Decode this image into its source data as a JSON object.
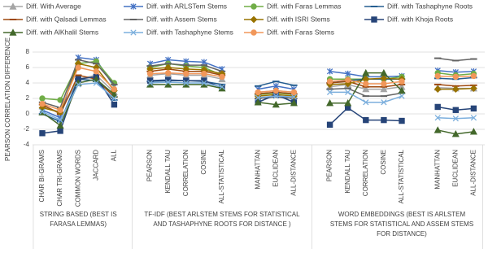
{
  "chart_data": {
    "type": "line",
    "y_label": "PEARSON CORRELATION DIFFERENCE",
    "categories": [
      "CHAR BI-GRAMS",
      "CHAR TRI-GRAMS",
      "COMMON WORDS",
      "JACCARD",
      "ALL",
      null,
      "PEARSON",
      "KENDALL TAU",
      "CORRELATION",
      "COSINE",
      "ALL-STATISTICAL",
      null,
      "MANHATTAN",
      "EUCLIDEAN",
      "ALL-DISTANCE",
      null,
      "PEARSON",
      "KENDALL TAU",
      "CORRELATION",
      "COSINE",
      "ALL-STATISTICAL",
      null,
      "MANHATTAN",
      "EUCLIDEAN",
      "ALL-DISTANCE"
    ],
    "groups": [
      {
        "lines": [
          "STRING BASED (BEST IS",
          "FARASA LEMMAS)"
        ]
      },
      {
        "lines": [
          "TF-IDF (BEST ARLSTEM STEMS FOR STATISTICAL",
          "AND TASHAPHYNE ROOTS FOR DISTANCE )"
        ]
      },
      {
        "lines": [
          "WORD EMBEDDINGS (BEST IS ARLSTEM",
          "STEMS FOR STATISTICAL AND ASSEM STEMS",
          "FOR DISTANCE)"
        ]
      }
    ],
    "ylim": [
      -4,
      8
    ],
    "yticks": [
      -4,
      -2,
      0,
      2,
      4,
      6,
      8
    ],
    "grid": true,
    "legend": "top",
    "series": [
      {
        "name": "Diff. With Average",
        "color": "#a5a5a5",
        "marker": "triangle",
        "values": [
          1.0,
          0.2,
          4.5,
          5.0,
          2.8,
          null,
          5.0,
          5.2,
          5.0,
          5.0,
          4.5,
          null,
          2.8,
          3.0,
          2.8,
          null,
          3.5,
          3.8,
          3.2,
          3.2,
          3.5,
          null,
          3.4,
          3.3,
          3.3
        ]
      },
      {
        "name": "Diff. with ARLSTem Stems",
        "color": "#4472c4",
        "marker": "star",
        "values": [
          0.5,
          -0.5,
          7.3,
          7.0,
          3.5,
          null,
          6.5,
          7.0,
          6.8,
          6.7,
          5.8,
          null,
          3.2,
          3.6,
          3.2,
          null,
          5.5,
          5.2,
          4.8,
          4.8,
          4.9,
          null,
          5.6,
          5.4,
          5.5
        ]
      },
      {
        "name": "Diff. with Faras Lemmas",
        "color": "#70ad47",
        "marker": "circle",
        "values": [
          2.0,
          1.8,
          6.5,
          6.8,
          4.0,
          null,
          6.0,
          6.5,
          6.2,
          6.0,
          5.0,
          null,
          2.5,
          2.7,
          2.5,
          null,
          4.5,
          4.5,
          4.5,
          4.5,
          4.8,
          null,
          5.3,
          5.0,
          5.2
        ]
      },
      {
        "name": "Diff. with Tashaphyne Roots",
        "color": "#255e91",
        "marker": "dash",
        "values": [
          0.0,
          -1.0,
          4.5,
          4.3,
          1.8,
          null,
          4.2,
          4.3,
          4.3,
          4.2,
          3.8,
          null,
          3.6,
          4.2,
          3.7,
          null,
          4.0,
          4.3,
          4.5,
          4.5,
          4.5,
          null,
          4.6,
          4.5,
          4.7
        ]
      },
      {
        "name": "Diff. with Qalsadi Lemmas",
        "color": "#9e480e",
        "marker": "dash",
        "values": [
          1.2,
          0.0,
          5.0,
          4.5,
          2.2,
          null,
          5.5,
          5.8,
          5.5,
          5.5,
          5.0,
          null,
          2.6,
          2.8,
          2.6,
          null,
          4.0,
          4.2,
          3.5,
          3.5,
          3.8,
          null,
          3.8,
          3.6,
          3.7
        ]
      },
      {
        "name": "Diff. with Assem Stems",
        "color": "#636363",
        "marker": "dash",
        "values": [
          1.5,
          0.8,
          7.0,
          6.5,
          3.8,
          null,
          6.2,
          6.5,
          6.3,
          6.3,
          5.5,
          null,
          2.0,
          2.2,
          2.0,
          null,
          3.2,
          3.3,
          2.3,
          2.3,
          2.7,
          null,
          7.2,
          6.9,
          7.1
        ]
      },
      {
        "name": "Diff. with ISRI Stems",
        "color": "#997300",
        "marker": "diamond",
        "values": [
          0.8,
          0.2,
          6.5,
          6.0,
          3.0,
          null,
          5.8,
          6.0,
          5.8,
          5.7,
          5.2,
          null,
          2.3,
          2.5,
          2.3,
          null,
          3.8,
          3.9,
          4.5,
          4.6,
          4.5,
          null,
          3.2,
          3.2,
          3.3
        ]
      },
      {
        "name": "Diff. with Khoja Roots",
        "color": "#264478",
        "marker": "square",
        "values": [
          -2.5,
          -2.2,
          4.5,
          4.8,
          1.2,
          null,
          4.3,
          4.4,
          4.3,
          4.3,
          3.4,
          null,
          1.5,
          2.5,
          1.5,
          null,
          -1.4,
          0.8,
          -0.8,
          -0.8,
          -0.9,
          null,
          0.9,
          0.5,
          0.7
        ]
      },
      {
        "name": "Diff. with AlKhalil Stems",
        "color": "#43682b",
        "marker": "triangle",
        "values": [
          0.2,
          -1.5,
          4.0,
          4.5,
          2.5,
          null,
          3.8,
          3.8,
          3.8,
          3.8,
          3.3,
          null,
          1.5,
          1.2,
          1.4,
          null,
          1.4,
          1.4,
          5.3,
          5.3,
          3.0,
          null,
          -2.1,
          -2.6,
          -2.3
        ]
      },
      {
        "name": "Diff. with Tashaphyne Stems",
        "color": "#7cafdd",
        "marker": "x",
        "values": [
          0.3,
          -0.8,
          3.8,
          4.0,
          2.0,
          null,
          4.0,
          4.1,
          4.0,
          4.0,
          3.5,
          null,
          2.1,
          2.3,
          2.2,
          null,
          2.8,
          2.8,
          1.5,
          1.5,
          2.3,
          null,
          -0.5,
          -0.6,
          -0.5
        ]
      },
      {
        "name": "Diff. with Faras Stems",
        "color": "#f1975a",
        "marker": "circle",
        "values": [
          1.3,
          0.5,
          6.0,
          5.5,
          3.2,
          null,
          5.2,
          5.3,
          5.2,
          5.2,
          4.8,
          null,
          2.8,
          3.0,
          2.8,
          null,
          4.2,
          4.4,
          3.9,
          3.9,
          4.2,
          null,
          4.9,
          4.8,
          4.9
        ]
      }
    ]
  }
}
